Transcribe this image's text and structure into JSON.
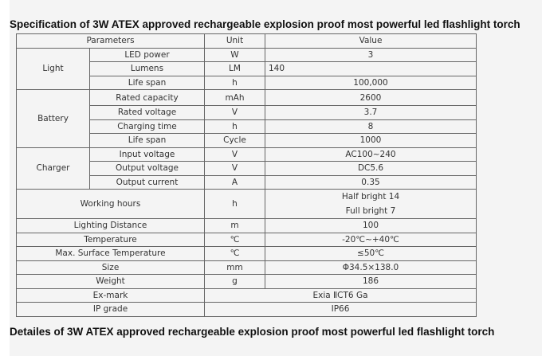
{
  "title": "Specification of 3W ATEX approved rechargeable explosion proof most powerful led flashlight torch",
  "subtitle": "Detailes of 3W ATEX approved rechargeable explosion proof most powerful led flashlight torch",
  "header": {
    "parameters": "Parameters",
    "unit": "Unit",
    "value": "Value"
  },
  "light": {
    "group": "Light",
    "rows": [
      [
        "LED power",
        "W",
        "3"
      ],
      [
        "Lumens",
        "LM",
        "140"
      ],
      [
        "Life span",
        "h",
        "100,000"
      ]
    ]
  },
  "battery": {
    "group": "Battery",
    "rows": [
      [
        "Rated capacity",
        "mAh",
        "2600"
      ],
      [
        "Rated voltage",
        "V",
        "3.7"
      ],
      [
        "Charging time",
        "h",
        "8"
      ],
      [
        "Life span",
        "Cycle",
        "1000"
      ]
    ]
  },
  "charger": {
    "group": "Charger",
    "rows": [
      [
        "Input voltage",
        "V",
        "AC100~240"
      ],
      [
        "Output voltage",
        "V",
        "DC5.6"
      ],
      [
        "Output current",
        "A",
        "0.35"
      ]
    ]
  },
  "working": {
    "label": "Working hours",
    "unit": "h",
    "half": "Half bright 14",
    "full": "Full bright 7"
  },
  "rows": [
    [
      "Lighting Distance",
      "m",
      "100"
    ],
    [
      "Temperature",
      "℃",
      "-20℃~+40℃"
    ],
    [
      "Max. Surface Temperature",
      "℃",
      "≤50℃"
    ],
    [
      "Size",
      "mm",
      "Φ34.5×138.0"
    ],
    [
      "Weight",
      "g",
      "186"
    ]
  ],
  "exmark": {
    "label": "Ex-mark",
    "value": "Exia ⅡCT6 Ga"
  },
  "ip": {
    "label": "IP grade",
    "value": "IP66"
  }
}
